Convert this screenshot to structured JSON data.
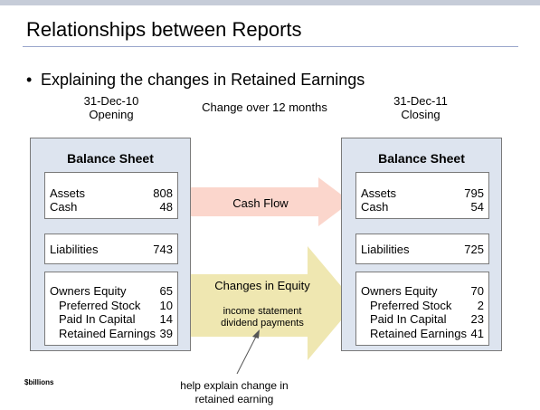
{
  "slide": {
    "title": "Relationships between Reports",
    "bullet": "Explaining the changes in Retained Earnings",
    "units": "$billions"
  },
  "opening": {
    "date": "31-Dec-10",
    "label": "Opening",
    "sheet_title": "Balance Sheet",
    "assets": {
      "label": "Assets",
      "value": "808"
    },
    "cash": {
      "label": "Cash",
      "value": "48"
    },
    "liabilities": {
      "label": "Liabilities",
      "value": "743"
    },
    "owners_equity": {
      "label": "Owners Equity",
      "value": "65"
    },
    "preferred_stock": {
      "label": "Preferred Stock",
      "value": "10"
    },
    "paid_in_capital": {
      "label": "Paid In Capital",
      "value": "14"
    },
    "retained_earnings": {
      "label": "Retained Earnings",
      "value": "39"
    }
  },
  "closing": {
    "date": "31-Dec-11",
    "label": "Closing",
    "sheet_title": "Balance Sheet",
    "assets": {
      "label": "Assets",
      "value": "795"
    },
    "cash": {
      "label": "Cash",
      "value": "54"
    },
    "liabilities": {
      "label": "Liabilities",
      "value": "725"
    },
    "owners_equity": {
      "label": "Owners Equity",
      "value": "70"
    },
    "preferred_stock": {
      "label": "Preferred Stock",
      "value": "2"
    },
    "paid_in_capital": {
      "label": "Paid In Capital",
      "value": "23"
    },
    "retained_earnings": {
      "label": "Retained Earnings",
      "value": "41"
    }
  },
  "middle": {
    "period": "Change over 12 months",
    "cash_flow": "Cash Flow",
    "changes_in_equity": "Changes in Equity",
    "equity_line1": "income statement",
    "equity_line2": "dividend payments",
    "note_line1": "help explain change in",
    "note_line2": "retained earning"
  },
  "colors": {
    "cash_flow_arrow": "#fbd6cc",
    "equity_arrow": "#efe7b1",
    "sheet_fill": "#dde4ef",
    "title_rule": "#9aa7cc"
  }
}
